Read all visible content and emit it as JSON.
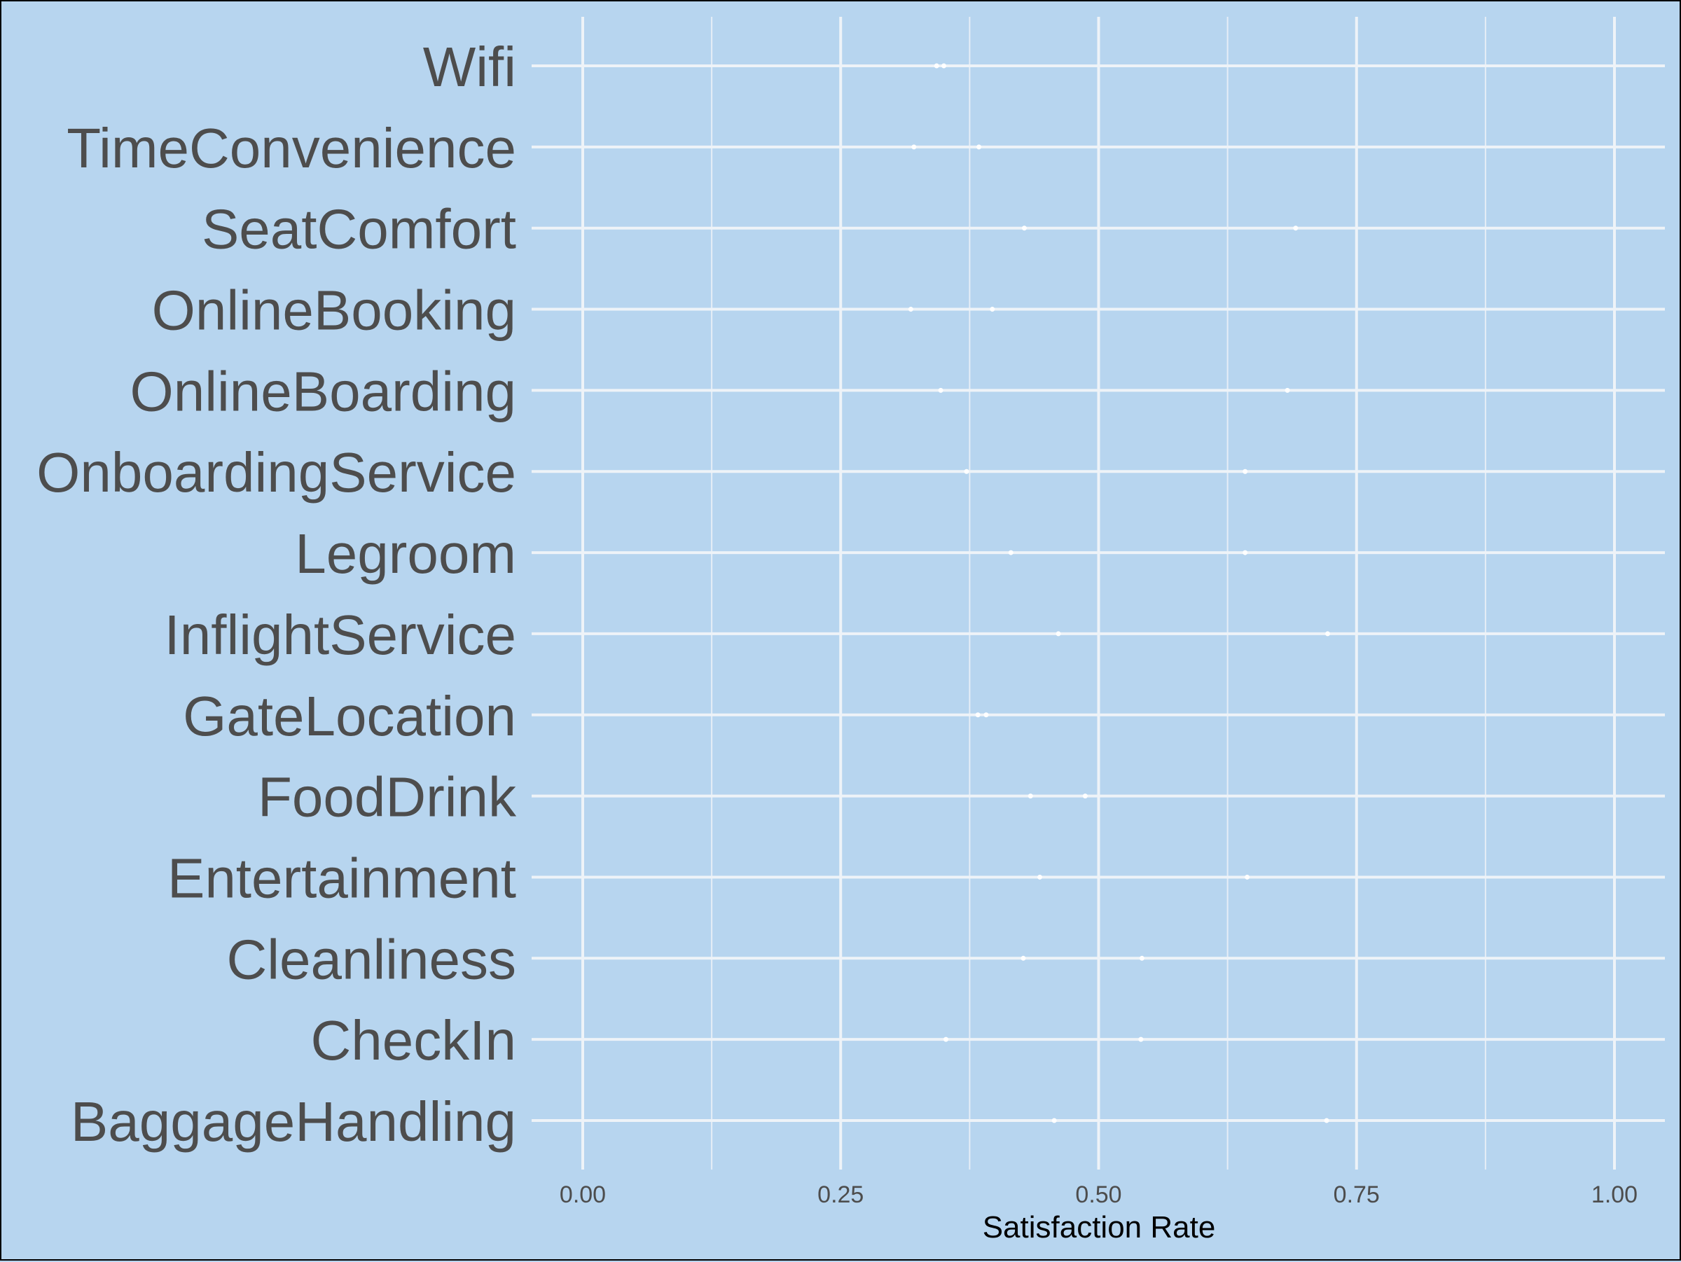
{
  "chart_data": {
    "type": "scatter",
    "title": "",
    "xlabel": "Satisfaction Rate",
    "ylabel": "",
    "xlim": [
      0,
      1
    ],
    "xticks": [
      "0.00",
      "0.25",
      "0.50",
      "0.75",
      "1.00"
    ],
    "grid": true,
    "categories": [
      "Wifi",
      "TimeConvenience",
      "SeatComfort",
      "OnlineBooking",
      "OnlineBoarding",
      "OnboardingService",
      "Legroom",
      "InflightService",
      "GateLocation",
      "FoodDrink",
      "Entertainment",
      "Cleanliness",
      "CheckIn",
      "BaggageHandling"
    ],
    "series": [
      {
        "values": [
          0.343,
          0.321,
          0.428,
          0.318,
          0.347,
          0.372,
          0.415,
          0.461,
          0.383,
          0.434,
          0.443,
          0.427,
          0.352,
          0.457
        ]
      },
      {
        "values": [
          0.35,
          0.384,
          0.691,
          0.397,
          0.683,
          0.642,
          0.642,
          0.722,
          0.391,
          0.487,
          0.644,
          0.542,
          0.541,
          0.721
        ]
      }
    ],
    "point_color": "#ffffff"
  }
}
